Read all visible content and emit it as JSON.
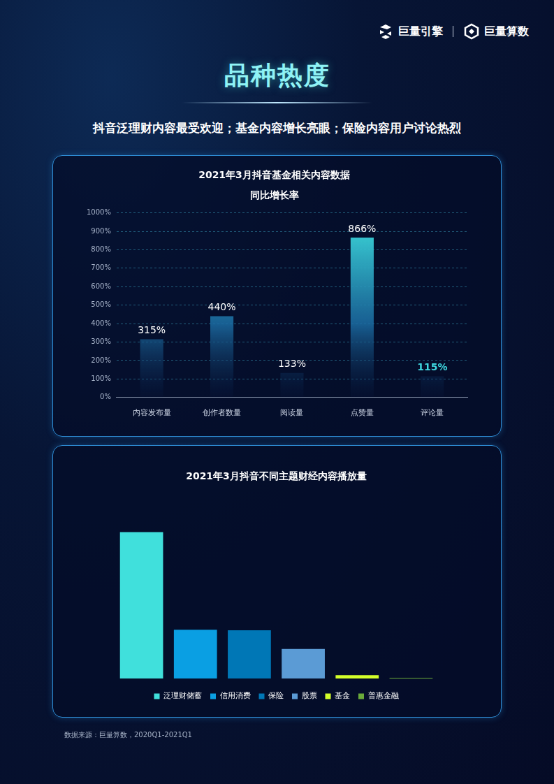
{
  "header": {
    "brands": [
      "巨量引擎",
      "巨量算数"
    ]
  },
  "title": "品种热度",
  "subtitle": "抖音泛理财内容最受欢迎；基金内容增长亮眼；保险内容用户讨论热烈",
  "source": "数据来源：巨量算数，2020Q1-2021Q1",
  "chart_data": [
    {
      "type": "bar",
      "title": "2021年3月抖音基金相关内容数据",
      "subtitle": "同比增长率",
      "categories": [
        "内容发布量",
        "创作者数量",
        "阅读量",
        "点赞量",
        "评论量"
      ],
      "values": [
        315,
        440,
        133,
        866,
        115
      ],
      "value_labels": [
        "315%",
        "440%",
        "133%",
        "866%",
        "115%"
      ],
      "color": "#3fe3e0",
      "data_labels": true,
      "grid": true,
      "ylim": [
        0,
        1000
      ],
      "yticks": [
        {
          "value": 0,
          "label": "0%"
        },
        {
          "value": 100,
          "label": "100%"
        },
        {
          "value": 200,
          "label": "200%"
        },
        {
          "value": 300,
          "label": "300%"
        },
        {
          "value": 400,
          "label": "400%"
        },
        {
          "value": 500,
          "label": "500%"
        },
        {
          "value": 600,
          "label": "600%"
        },
        {
          "value": 700,
          "label": "700%"
        },
        {
          "value": 800,
          "label": "800%"
        },
        {
          "value": 900,
          "label": "900%"
        },
        {
          "value": 1000,
          "label": "1000%"
        }
      ]
    },
    {
      "type": "bar",
      "title": "2021年3月抖音不同主题财经内容播放量",
      "categories": [
        "泛理财储蓄",
        "信用消费",
        "保险",
        "股票",
        "基金",
        "普惠金融"
      ],
      "values": [
        100,
        33.3,
        32.9,
        20.2,
        2.3,
        0.5
      ],
      "colors": [
        "#40e0dc",
        "#0a9fe3",
        "#0077b6",
        "#5b9bd5",
        "#d4ff2a",
        "#6aaa3a"
      ],
      "ylim": [
        0,
        130
      ],
      "tick_labels": false,
      "grid": false,
      "legend": "bottom"
    }
  ]
}
